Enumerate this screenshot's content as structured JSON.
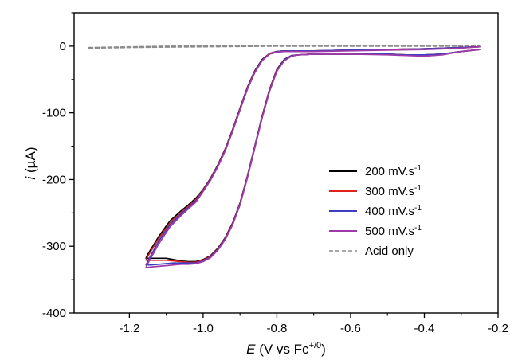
{
  "chart_data": {
    "type": "line",
    "title": "",
    "xlabel": {
      "italic": "E",
      "main": " (V vs Fc",
      "sup": "+/0",
      "tail": ")"
    },
    "ylabel": {
      "italic": "i",
      "main": " (µA)"
    },
    "xlim": [
      -1.35,
      -0.2
    ],
    "ylim": [
      -400,
      50
    ],
    "xticks": [
      -1.2,
      -1.0,
      -0.8,
      -0.6,
      -0.4,
      -0.2
    ],
    "xtick_labels": [
      "-1.2",
      "-1.0",
      "-0.8",
      "-0.6",
      "-0.4",
      "-0.2"
    ],
    "yticks": [
      0,
      -100,
      -200,
      -300,
      -400
    ],
    "ytick_labels": [
      "0",
      "-100",
      "-200",
      "-300",
      "-400"
    ],
    "grid": false,
    "legend_position": "right-middle",
    "series": [
      {
        "name": "200 mV.s-1",
        "label_main": "200 mV.s",
        "label_sup": "-1",
        "color": "#000000",
        "dash": "solid",
        "x": [
          -0.25,
          -0.3,
          -0.35,
          -0.4,
          -0.45,
          -0.5,
          -0.6,
          -0.7,
          -0.74,
          -0.76,
          -0.78,
          -0.8,
          -0.82,
          -0.84,
          -0.86,
          -0.88,
          -0.9,
          -0.92,
          -0.94,
          -0.96,
          -0.98,
          -1.0,
          -1.02,
          -1.04,
          -1.06,
          -1.08,
          -1.1,
          -1.12,
          -1.14,
          -1.155,
          -1.15,
          -1.12,
          -1.09,
          -1.06,
          -1.04,
          -1.02,
          -1.0,
          -0.98,
          -0.96,
          -0.94,
          -0.92,
          -0.9,
          -0.88,
          -0.86,
          -0.84,
          -0.82,
          -0.8,
          -0.78,
          -0.76,
          -0.7,
          -0.6,
          -0.5,
          -0.4,
          -0.3,
          -0.25
        ],
        "y": [
          -5,
          -8,
          -12,
          -13,
          -13,
          -12,
          -12,
          -12,
          -13,
          -14,
          -20,
          -35,
          -65,
          -105,
          -150,
          -195,
          -235,
          -265,
          -287,
          -303,
          -314,
          -320,
          -323,
          -323,
          -322,
          -320,
          -318,
          -318,
          -318,
          -318,
          -312,
          -285,
          -262,
          -247,
          -238,
          -228,
          -215,
          -198,
          -178,
          -154,
          -125,
          -93,
          -62,
          -37,
          -20,
          -11,
          -8,
          -7,
          -7,
          -7,
          -6,
          -5,
          -4,
          -2,
          -1
        ]
      },
      {
        "name": "300 mV.s-1",
        "label_main": "300 mV.s",
        "label_sup": "-1",
        "color": "#e0201b",
        "dash": "solid",
        "x": [
          -0.25,
          -0.3,
          -0.35,
          -0.4,
          -0.45,
          -0.5,
          -0.6,
          -0.7,
          -0.74,
          -0.76,
          -0.78,
          -0.8,
          -0.82,
          -0.84,
          -0.86,
          -0.88,
          -0.9,
          -0.92,
          -0.94,
          -0.96,
          -0.98,
          -1.0,
          -1.02,
          -1.04,
          -1.06,
          -1.08,
          -1.1,
          -1.12,
          -1.14,
          -1.155,
          -1.15,
          -1.12,
          -1.09,
          -1.06,
          -1.04,
          -1.02,
          -1.0,
          -0.98,
          -0.96,
          -0.94,
          -0.92,
          -0.9,
          -0.88,
          -0.86,
          -0.84,
          -0.82,
          -0.8,
          -0.78,
          -0.76,
          -0.7,
          -0.6,
          -0.5,
          -0.4,
          -0.3,
          -0.25
        ],
        "y": [
          -5,
          -8,
          -12,
          -13,
          -13,
          -12,
          -12,
          -12,
          -13,
          -14,
          -21,
          -36,
          -66,
          -106,
          -151,
          -196,
          -236,
          -266,
          -288,
          -304,
          -315,
          -321,
          -324,
          -324,
          -323,
          -322,
          -321,
          -321,
          -321,
          -321,
          -315,
          -288,
          -265,
          -250,
          -240,
          -230,
          -216,
          -199,
          -179,
          -155,
          -126,
          -94,
          -63,
          -38,
          -21,
          -11,
          -8,
          -7,
          -7,
          -7,
          -6,
          -5,
          -4,
          -2,
          -1
        ]
      },
      {
        "name": "400 mV.s-1",
        "label_main": "400 mV.s",
        "label_sup": "-1",
        "color": "#3b3fbf",
        "dash": "solid",
        "x": [
          -0.25,
          -0.3,
          -0.35,
          -0.4,
          -0.45,
          -0.5,
          -0.6,
          -0.7,
          -0.74,
          -0.76,
          -0.78,
          -0.8,
          -0.82,
          -0.84,
          -0.86,
          -0.88,
          -0.9,
          -0.92,
          -0.94,
          -0.96,
          -0.98,
          -1.0,
          -1.02,
          -1.04,
          -1.06,
          -1.08,
          -1.1,
          -1.12,
          -1.14,
          -1.155,
          -1.15,
          -1.12,
          -1.09,
          -1.06,
          -1.04,
          -1.02,
          -1.0,
          -0.98,
          -0.96,
          -0.94,
          -0.92,
          -0.9,
          -0.88,
          -0.86,
          -0.84,
          -0.82,
          -0.8,
          -0.78,
          -0.76,
          -0.7,
          -0.6,
          -0.5,
          -0.4,
          -0.3,
          -0.25
        ],
        "y": [
          -5,
          -8,
          -12,
          -13,
          -13,
          -12,
          -12,
          -12,
          -13,
          -14,
          -21,
          -37,
          -67,
          -107,
          -152,
          -197,
          -237,
          -267,
          -289,
          -305,
          -316,
          -322,
          -325,
          -325,
          -325,
          -325,
          -326,
          -327,
          -328,
          -328,
          -322,
          -292,
          -268,
          -252,
          -242,
          -232,
          -217,
          -200,
          -180,
          -156,
          -127,
          -95,
          -64,
          -39,
          -21,
          -12,
          -8,
          -7,
          -7,
          -7,
          -6,
          -5,
          -4,
          -2,
          -1
        ]
      },
      {
        "name": "500 mV.s-1",
        "label_main": "500 mV.s",
        "label_sup": "-1",
        "color": "#a03aa8",
        "dash": "solid",
        "x": [
          -0.25,
          -0.3,
          -0.35,
          -0.4,
          -0.45,
          -0.5,
          -0.6,
          -0.7,
          -0.74,
          -0.76,
          -0.78,
          -0.8,
          -0.82,
          -0.84,
          -0.86,
          -0.88,
          -0.9,
          -0.92,
          -0.94,
          -0.96,
          -0.98,
          -1.0,
          -1.02,
          -1.04,
          -1.06,
          -1.08,
          -1.1,
          -1.12,
          -1.14,
          -1.155,
          -1.15,
          -1.12,
          -1.09,
          -1.06,
          -1.04,
          -1.02,
          -1.0,
          -0.98,
          -0.96,
          -0.94,
          -0.92,
          -0.9,
          -0.88,
          -0.86,
          -0.84,
          -0.82,
          -0.8,
          -0.78,
          -0.76,
          -0.7,
          -0.6,
          -0.5,
          -0.4,
          -0.3,
          -0.25
        ],
        "y": [
          -5,
          -8,
          -13,
          -15,
          -14,
          -13,
          -12,
          -12,
          -13,
          -15,
          -22,
          -38,
          -68,
          -108,
          -153,
          -198,
          -238,
          -268,
          -290,
          -306,
          -317,
          -323,
          -326,
          -327,
          -327,
          -328,
          -329,
          -330,
          -331,
          -332,
          -326,
          -296,
          -271,
          -254,
          -244,
          -234,
          -218,
          -201,
          -181,
          -157,
          -128,
          -96,
          -65,
          -40,
          -22,
          -12,
          -9,
          -8,
          -8,
          -8,
          -7,
          -6,
          -5,
          -3,
          -1
        ]
      },
      {
        "name": "Acid only",
        "label_main": "Acid only",
        "label_sup": "",
        "color": "#8c8c8c",
        "dash": "dashed",
        "x": [
          -1.31,
          -1.2,
          -1.1,
          -1.0,
          -0.9,
          -0.8,
          -0.7,
          -0.6,
          -0.5,
          -0.4,
          -0.3,
          -0.25,
          -0.3,
          -0.4,
          -0.5,
          -0.6,
          -0.7,
          -0.8,
          -0.9,
          -1.0,
          -1.1,
          -1.2,
          -1.31
        ],
        "y": [
          -3,
          -2,
          -1.5,
          -1,
          -0.5,
          0,
          0,
          0,
          0,
          0,
          0,
          0,
          1,
          1,
          1,
          1,
          1,
          1,
          1,
          0.5,
          0,
          -1,
          -2
        ]
      }
    ]
  }
}
